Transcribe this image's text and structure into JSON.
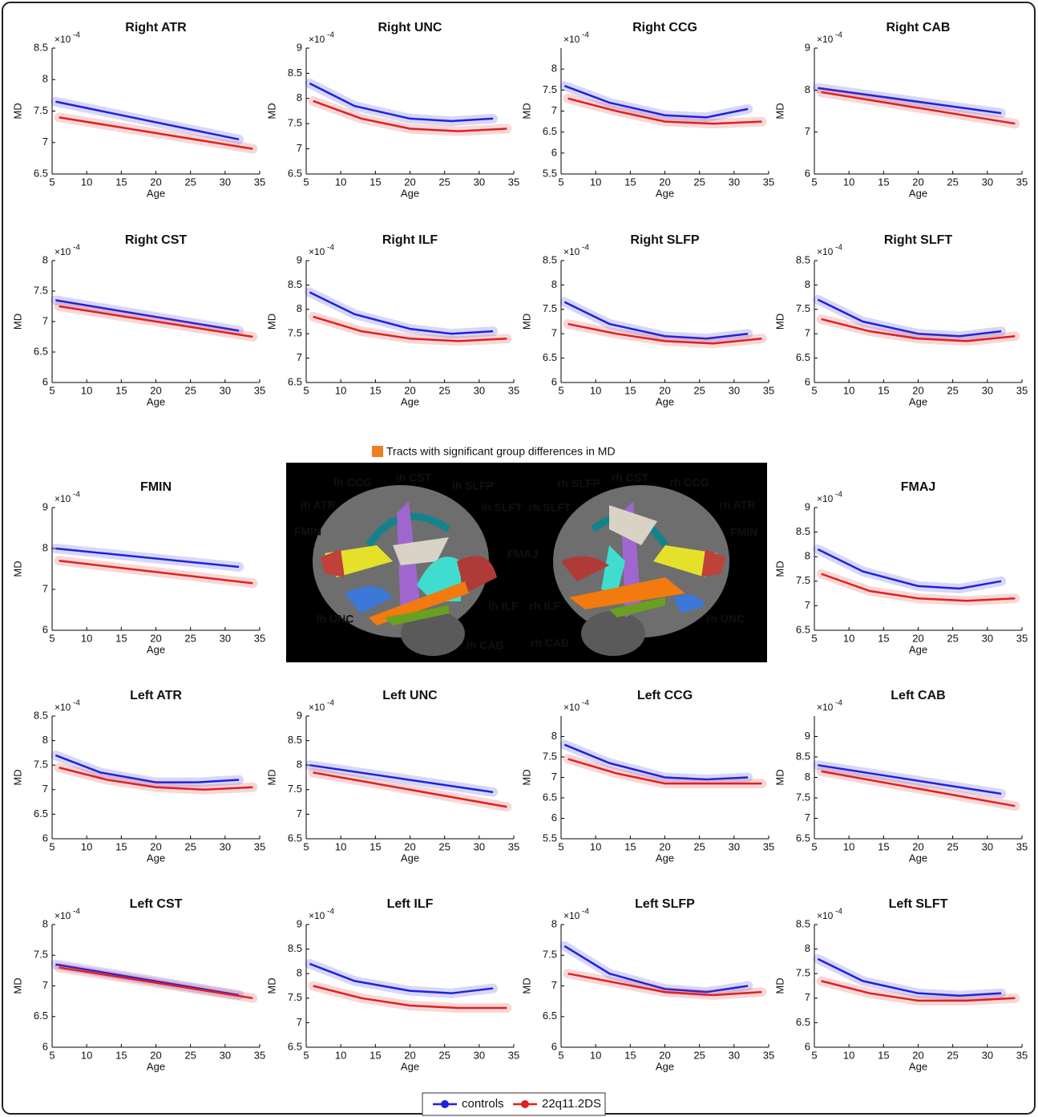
{
  "axis_text": {
    "ylabel": "MD",
    "xlabel": "Age",
    "scale_base": "×10",
    "scale_exp": "-4"
  },
  "brain_image": {
    "caption": "Tracts with significant group differences in MD",
    "caption_color": "#f07d1e",
    "labels": [
      {
        "text": "lh CCG",
        "color": "#f07d1e"
      },
      {
        "text": "lh CST",
        "color": "#ffffff"
      },
      {
        "text": "lh SLFP",
        "color": "#f07d1e"
      },
      {
        "text": "lh ATR",
        "color": "#f07d1e"
      },
      {
        "text": "lh SLFT",
        "color": "#f07d1e"
      },
      {
        "text": "rh SLFT",
        "color": "#f07d1e"
      },
      {
        "text": "FMIN",
        "color": "#f07d1e"
      },
      {
        "text": "FMAJ",
        "color": "#f07d1e"
      },
      {
        "text": "lh ILF",
        "color": "#f07d1e"
      },
      {
        "text": "lh UNC",
        "color": "#f07d1e"
      },
      {
        "text": "lh CAB",
        "color": "#f07d1e"
      },
      {
        "text": "rh SLFP",
        "color": "#f07d1e"
      },
      {
        "text": "rh CST",
        "color": "#ffffff"
      },
      {
        "text": "rh CCG",
        "color": "#f07d1e"
      },
      {
        "text": "rh ATR",
        "color": "#f07d1e"
      },
      {
        "text": "FMIN",
        "color": "#f07d1e"
      },
      {
        "text": "rh ILF",
        "color": "#f07d1e"
      },
      {
        "text": "rh UNC",
        "color": "#f07d1e"
      },
      {
        "text": "rh CAB",
        "color": "#ffffff"
      }
    ]
  },
  "chart_data": [
    {
      "type": "line",
      "title": "Right ATR",
      "title_color": "#f07d1e",
      "xlim": [
        5,
        35
      ],
      "xticks": [
        5,
        10,
        15,
        20,
        25,
        30,
        35
      ],
      "ylim": [
        6.5,
        8.5
      ],
      "yticks": [
        6.5,
        7,
        7.5,
        8,
        8.5
      ],
      "series": [
        {
          "name": "controls",
          "color": "#2020e0",
          "x": [
            5.5,
            32
          ],
          "values": [
            7.65,
            7.05
          ]
        },
        {
          "name": "22q11.2DS",
          "color": "#e02020",
          "x": [
            6,
            34
          ],
          "values": [
            7.4,
            6.9
          ]
        }
      ]
    },
    {
      "type": "line",
      "title": "Right UNC",
      "title_color": "#f07d1e",
      "xlim": [
        5,
        35
      ],
      "xticks": [
        5,
        10,
        15,
        20,
        25,
        30,
        35
      ],
      "ylim": [
        6.5,
        9
      ],
      "yticks": [
        6.5,
        7,
        7.5,
        8,
        8.5,
        9
      ],
      "series": [
        {
          "name": "controls",
          "color": "#2020e0",
          "x": [
            5.5,
            12,
            20,
            26,
            32
          ],
          "values": [
            8.3,
            7.85,
            7.6,
            7.55,
            7.6
          ]
        },
        {
          "name": "22q11.2DS",
          "color": "#e02020",
          "x": [
            6,
            13,
            20,
            27,
            34
          ],
          "values": [
            7.95,
            7.6,
            7.4,
            7.35,
            7.4
          ]
        }
      ]
    },
    {
      "type": "line",
      "title": "Right CCG",
      "title_color": "#f07d1e",
      "xlim": [
        5,
        35
      ],
      "xticks": [
        5,
        10,
        15,
        20,
        25,
        30,
        35
      ],
      "ylim": [
        5.5,
        8.5
      ],
      "yticks": [
        5.5,
        6,
        6.5,
        7,
        7.5,
        8
      ],
      "series": [
        {
          "name": "controls",
          "color": "#2020e0",
          "x": [
            5.5,
            12,
            20,
            26,
            32
          ],
          "values": [
            7.6,
            7.2,
            6.9,
            6.85,
            7.05
          ]
        },
        {
          "name": "22q11.2DS",
          "color": "#e02020",
          "x": [
            6,
            13,
            20,
            27,
            34
          ],
          "values": [
            7.3,
            7.0,
            6.75,
            6.7,
            6.75
          ]
        }
      ]
    },
    {
      "type": "line",
      "title": "Right CAB",
      "title_color": "#111111",
      "xlim": [
        5,
        35
      ],
      "xticks": [
        5,
        10,
        15,
        20,
        25,
        30,
        35
      ],
      "ylim": [
        6,
        9
      ],
      "yticks": [
        6,
        7,
        8,
        9
      ],
      "series": [
        {
          "name": "controls",
          "color": "#2020e0",
          "x": [
            5.5,
            32
          ],
          "values": [
            8.05,
            7.45
          ]
        },
        {
          "name": "22q11.2DS",
          "color": "#e02020",
          "x": [
            6,
            34
          ],
          "values": [
            7.95,
            7.2
          ]
        }
      ]
    },
    {
      "type": "line",
      "title": "Right CST",
      "title_color": "#111111",
      "xlim": [
        5,
        35
      ],
      "xticks": [
        5,
        10,
        15,
        20,
        25,
        30,
        35
      ],
      "ylim": [
        6,
        8
      ],
      "yticks": [
        6,
        6.5,
        7,
        7.5,
        8
      ],
      "series": [
        {
          "name": "controls",
          "color": "#2020e0",
          "x": [
            5.5,
            32
          ],
          "values": [
            7.35,
            6.85
          ]
        },
        {
          "name": "22q11.2DS",
          "color": "#e02020",
          "x": [
            6,
            34
          ],
          "values": [
            7.25,
            6.75
          ]
        }
      ]
    },
    {
      "type": "line",
      "title": "Right ILF",
      "title_color": "#f07d1e",
      "xlim": [
        5,
        35
      ],
      "xticks": [
        5,
        10,
        15,
        20,
        25,
        30,
        35
      ],
      "ylim": [
        6.5,
        9
      ],
      "yticks": [
        6.5,
        7,
        7.5,
        8,
        8.5,
        9
      ],
      "series": [
        {
          "name": "controls",
          "color": "#2020e0",
          "x": [
            5.5,
            12,
            20,
            26,
            32
          ],
          "values": [
            8.35,
            7.9,
            7.6,
            7.5,
            7.55
          ]
        },
        {
          "name": "22q11.2DS",
          "color": "#e02020",
          "x": [
            6,
            13,
            20,
            27,
            34
          ],
          "values": [
            7.85,
            7.55,
            7.4,
            7.35,
            7.4
          ]
        }
      ]
    },
    {
      "type": "line",
      "title": "Right SLFP",
      "title_color": "#f07d1e",
      "xlim": [
        5,
        35
      ],
      "xticks": [
        5,
        10,
        15,
        20,
        25,
        30,
        35
      ],
      "ylim": [
        6,
        8.5
      ],
      "yticks": [
        6,
        6.5,
        7,
        7.5,
        8,
        8.5
      ],
      "series": [
        {
          "name": "controls",
          "color": "#2020e0",
          "x": [
            5.5,
            12,
            20,
            26,
            32
          ],
          "values": [
            7.65,
            7.2,
            6.95,
            6.9,
            7.0
          ]
        },
        {
          "name": "22q11.2DS",
          "color": "#e02020",
          "x": [
            6,
            13,
            20,
            27,
            34
          ],
          "values": [
            7.2,
            7.0,
            6.85,
            6.8,
            6.9
          ]
        }
      ]
    },
    {
      "type": "line",
      "title": "Right SLFT",
      "title_color": "#f07d1e",
      "xlim": [
        5,
        35
      ],
      "xticks": [
        5,
        10,
        15,
        20,
        25,
        30,
        35
      ],
      "ylim": [
        6,
        8.5
      ],
      "yticks": [
        6,
        6.5,
        7,
        7.5,
        8,
        8.5
      ],
      "series": [
        {
          "name": "controls",
          "color": "#2020e0",
          "x": [
            5.5,
            12,
            20,
            26,
            32
          ],
          "values": [
            7.7,
            7.25,
            7.0,
            6.95,
            7.05
          ]
        },
        {
          "name": "22q11.2DS",
          "color": "#e02020",
          "x": [
            6,
            13,
            20,
            27,
            34
          ],
          "values": [
            7.3,
            7.05,
            6.9,
            6.85,
            6.95
          ]
        }
      ]
    },
    {
      "type": "line",
      "title": "FMIN",
      "title_color": "#f07d1e",
      "xlim": [
        5,
        35
      ],
      "xticks": [
        5,
        10,
        15,
        20,
        25,
        30,
        35
      ],
      "ylim": [
        6,
        9
      ],
      "yticks": [
        6,
        7,
        8,
        9
      ],
      "series": [
        {
          "name": "controls",
          "color": "#2020e0",
          "x": [
            5.5,
            32
          ],
          "values": [
            8.0,
            7.55
          ]
        },
        {
          "name": "22q11.2DS",
          "color": "#e02020",
          "x": [
            6,
            34
          ],
          "values": [
            7.7,
            7.15
          ]
        }
      ]
    },
    {
      "type": "line",
      "title": "FMAJ",
      "title_color": "#f07d1e",
      "xlim": [
        5,
        35
      ],
      "xticks": [
        5,
        10,
        15,
        20,
        25,
        30,
        35
      ],
      "ylim": [
        6.5,
        9
      ],
      "yticks": [
        6.5,
        7,
        7.5,
        8,
        8.5,
        9
      ],
      "series": [
        {
          "name": "controls",
          "color": "#2020e0",
          "x": [
            5.5,
            12,
            20,
            26,
            32
          ],
          "values": [
            8.15,
            7.7,
            7.4,
            7.35,
            7.5
          ]
        },
        {
          "name": "22q11.2DS",
          "color": "#e02020",
          "x": [
            6,
            13,
            20,
            27,
            34
          ],
          "values": [
            7.65,
            7.3,
            7.15,
            7.1,
            7.15
          ]
        }
      ]
    },
    {
      "type": "line",
      "title": "Left ATR",
      "title_color": "#f07d1e",
      "xlim": [
        5,
        35
      ],
      "xticks": [
        5,
        10,
        15,
        20,
        25,
        30,
        35
      ],
      "ylim": [
        6,
        8.5
      ],
      "yticks": [
        6,
        6.5,
        7,
        7.5,
        8,
        8.5
      ],
      "series": [
        {
          "name": "controls",
          "color": "#2020e0",
          "x": [
            5.5,
            12,
            20,
            26,
            32
          ],
          "values": [
            7.7,
            7.35,
            7.15,
            7.15,
            7.2
          ]
        },
        {
          "name": "22q11.2DS",
          "color": "#e02020",
          "x": [
            6,
            13,
            20,
            27,
            34
          ],
          "values": [
            7.45,
            7.2,
            7.05,
            7.0,
            7.05
          ]
        }
      ]
    },
    {
      "type": "line",
      "title": "Left UNC",
      "title_color": "#f07d1e",
      "xlim": [
        5,
        35
      ],
      "xticks": [
        5,
        10,
        15,
        20,
        25,
        30,
        35
      ],
      "ylim": [
        6.5,
        9
      ],
      "yticks": [
        6.5,
        7,
        7.5,
        8,
        8.5,
        9
      ],
      "series": [
        {
          "name": "controls",
          "color": "#2020e0",
          "x": [
            5.5,
            32
          ],
          "values": [
            8.0,
            7.45
          ]
        },
        {
          "name": "22q11.2DS",
          "color": "#e02020",
          "x": [
            6,
            34
          ],
          "values": [
            7.85,
            7.15
          ]
        }
      ]
    },
    {
      "type": "line",
      "title": "Left CCG",
      "title_color": "#f07d1e",
      "xlim": [
        5,
        35
      ],
      "xticks": [
        5,
        10,
        15,
        20,
        25,
        30,
        35
      ],
      "ylim": [
        5.5,
        8.5
      ],
      "yticks": [
        5.5,
        6,
        6.5,
        7,
        7.5,
        8
      ],
      "series": [
        {
          "name": "controls",
          "color": "#2020e0",
          "x": [
            5.5,
            12,
            20,
            26,
            32
          ],
          "values": [
            7.8,
            7.35,
            7.0,
            6.95,
            7.0
          ]
        },
        {
          "name": "22q11.2DS",
          "color": "#e02020",
          "x": [
            6,
            13,
            20,
            27,
            34
          ],
          "values": [
            7.45,
            7.1,
            6.85,
            6.85,
            6.85
          ]
        }
      ]
    },
    {
      "type": "line",
      "title": "Left CAB",
      "title_color": "#f07d1e",
      "xlim": [
        5,
        35
      ],
      "xticks": [
        5,
        10,
        15,
        20,
        25,
        30,
        35
      ],
      "ylim": [
        6.5,
        9.5
      ],
      "yticks": [
        6.5,
        7,
        7.5,
        8,
        8.5,
        9
      ],
      "series": [
        {
          "name": "controls",
          "color": "#2020e0",
          "x": [
            5.5,
            32
          ],
          "values": [
            8.3,
            7.6
          ]
        },
        {
          "name": "22q11.2DS",
          "color": "#e02020",
          "x": [
            6,
            34
          ],
          "values": [
            8.15,
            7.3
          ]
        }
      ]
    },
    {
      "type": "line",
      "title": "Left CST",
      "title_color": "#111111",
      "xlim": [
        5,
        35
      ],
      "xticks": [
        5,
        10,
        15,
        20,
        25,
        30,
        35
      ],
      "ylim": [
        6,
        8
      ],
      "yticks": [
        6,
        6.5,
        7,
        7.5,
        8
      ],
      "series": [
        {
          "name": "controls",
          "color": "#2020e0",
          "x": [
            5.5,
            32
          ],
          "values": [
            7.35,
            6.85
          ]
        },
        {
          "name": "22q11.2DS",
          "color": "#e02020",
          "x": [
            6,
            34
          ],
          "values": [
            7.3,
            6.8
          ]
        }
      ]
    },
    {
      "type": "line",
      "title": "Left ILF",
      "title_color": "#f07d1e",
      "xlim": [
        5,
        35
      ],
      "xticks": [
        5,
        10,
        15,
        20,
        25,
        30,
        35
      ],
      "ylim": [
        6.5,
        9
      ],
      "yticks": [
        6.5,
        7,
        7.5,
        8,
        8.5,
        9
      ],
      "series": [
        {
          "name": "controls",
          "color": "#2020e0",
          "x": [
            5.5,
            12,
            20,
            26,
            32
          ],
          "values": [
            8.2,
            7.85,
            7.65,
            7.6,
            7.7
          ]
        },
        {
          "name": "22q11.2DS",
          "color": "#e02020",
          "x": [
            6,
            13,
            20,
            27,
            34
          ],
          "values": [
            7.75,
            7.5,
            7.35,
            7.3,
            7.3
          ]
        }
      ]
    },
    {
      "type": "line",
      "title": "Left SLFP",
      "title_color": "#f07d1e",
      "xlim": [
        5,
        35
      ],
      "xticks": [
        5,
        10,
        15,
        20,
        25,
        30,
        35
      ],
      "ylim": [
        6,
        8
      ],
      "yticks": [
        6,
        6.5,
        7,
        7.5,
        8
      ],
      "series": [
        {
          "name": "controls",
          "color": "#2020e0",
          "x": [
            5.5,
            12,
            20,
            26,
            32
          ],
          "values": [
            7.65,
            7.2,
            6.95,
            6.9,
            7.0
          ]
        },
        {
          "name": "22q11.2DS",
          "color": "#e02020",
          "x": [
            6,
            13,
            20,
            27,
            34
          ],
          "values": [
            7.2,
            7.05,
            6.9,
            6.85,
            6.9
          ]
        }
      ]
    },
    {
      "type": "line",
      "title": "Left SLFT",
      "title_color": "#f07d1e",
      "xlim": [
        5,
        35
      ],
      "xticks": [
        5,
        10,
        15,
        20,
        25,
        30,
        35
      ],
      "ylim": [
        6,
        8.5
      ],
      "yticks": [
        6,
        6.5,
        7,
        7.5,
        8,
        8.5
      ],
      "series": [
        {
          "name": "controls",
          "color": "#2020e0",
          "x": [
            5.5,
            12,
            20,
            26,
            32
          ],
          "values": [
            7.8,
            7.35,
            7.1,
            7.05,
            7.1
          ]
        },
        {
          "name": "22q11.2DS",
          "color": "#e02020",
          "x": [
            6,
            13,
            20,
            27,
            34
          ],
          "values": [
            7.35,
            7.1,
            6.95,
            6.95,
            7.0
          ]
        }
      ]
    }
  ]
}
